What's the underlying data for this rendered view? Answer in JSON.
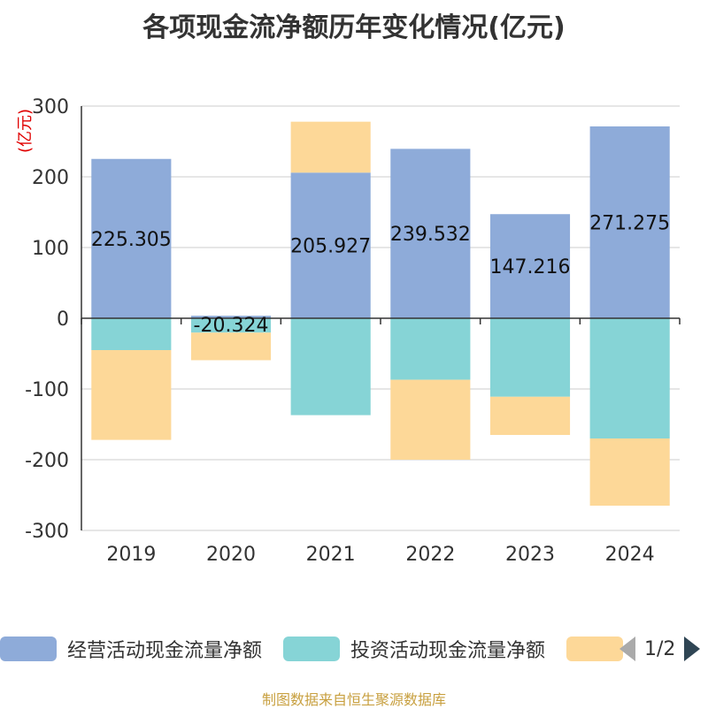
{
  "title": "各项现金流净额历年变化情况(亿元)",
  "source": "制图数据来自恒生聚源数据库",
  "legend_page": "1/2",
  "chart_data": {
    "type": "bar",
    "stacked": true,
    "unit": "(亿元)",
    "categories": [
      "2019",
      "2020",
      "2021",
      "2022",
      "2023",
      "2024"
    ],
    "ylim": [
      -300,
      300
    ],
    "yticks": [
      300,
      200,
      100,
      0,
      -100,
      -200,
      -300
    ],
    "grid": true,
    "legend_position": "bottom",
    "series": [
      {
        "name": "经营活动现金流量净额",
        "color": "#8eabd9",
        "values": [
          225.305,
          3.5,
          205.927,
          239.532,
          147.216,
          271.275
        ],
        "labels": [
          "225.305",
          "",
          "205.927",
          "239.532",
          "147.216",
          "271.275"
        ]
      },
      {
        "name": "投资活动现金流量净额",
        "color": "#86d4d6",
        "values": [
          -45,
          -20.324,
          -137,
          -87,
          -111,
          -170
        ],
        "labels": [
          "",
          "-20.324",
          "",
          "",
          "",
          ""
        ]
      },
      {
        "name": "",
        "color": "#fdd898",
        "values": [
          -127,
          -39,
          72,
          -113,
          -54,
          -95
        ],
        "labels": [
          "",
          "",
          "",
          "",
          "",
          ""
        ]
      }
    ]
  }
}
